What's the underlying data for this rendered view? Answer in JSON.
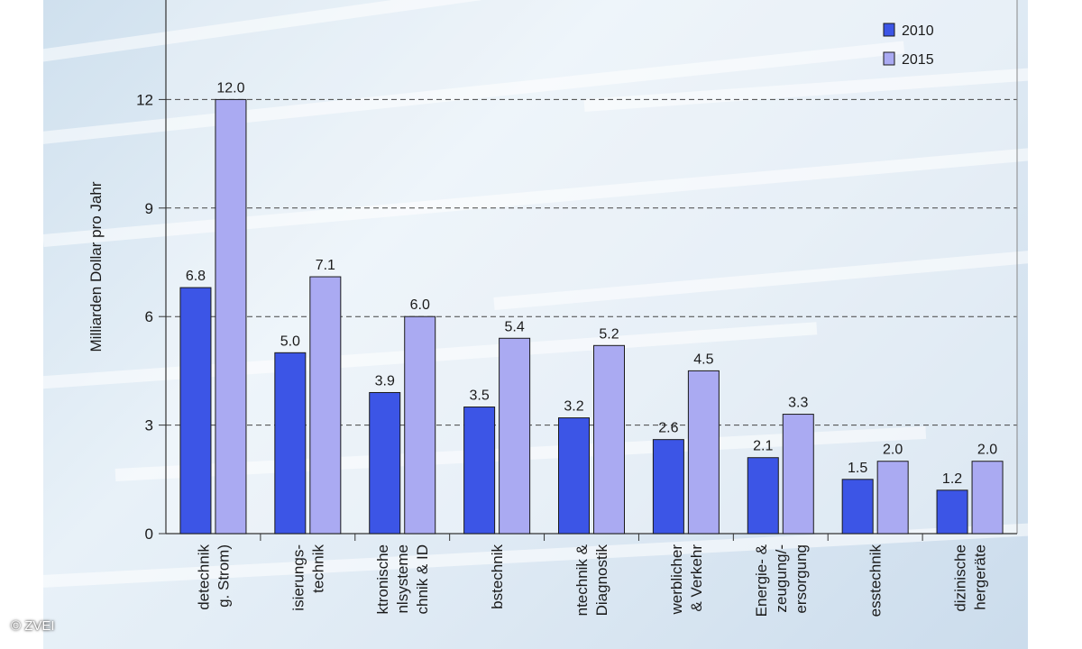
{
  "copyright": "© ZVEI",
  "colors": {
    "s2010": "#3c55e6",
    "s2015": "#aaaaf2",
    "gridline": "#444444"
  },
  "chart_data": {
    "type": "bar",
    "ylabel": "Milliarden Dollar pro Jahr",
    "ylim": [
      0,
      15
    ],
    "yticks": [
      0,
      3,
      6,
      9,
      12
    ],
    "grid": "dashed horizontal",
    "legend_position": "top-right",
    "categories": [
      [
        "detechnik",
        "g. Strom)"
      ],
      [
        "isierungs-",
        "technik"
      ],
      [
        "ktronische",
        "nlsysteme",
        "chnik & ID"
      ],
      [
        "bstechnik"
      ],
      [
        "ntechnik &",
        "Diagnostik"
      ],
      [
        "werblicher",
        "& Verkehr"
      ],
      [
        "Energie- &",
        "zeugung/-",
        "ersorgung"
      ],
      [
        "esstechnik"
      ],
      [
        "dizinische",
        "hergeräte"
      ]
    ],
    "series": [
      {
        "name": "2010",
        "values": [
          6.8,
          5.0,
          3.9,
          3.5,
          3.2,
          2.6,
          2.1,
          1.5,
          1.2
        ],
        "labels": [
          "6.8",
          "5.0",
          "3.9",
          "3.5",
          "3.2",
          "2.6",
          "2.1",
          "1.5",
          "1.2"
        ]
      },
      {
        "name": "2015",
        "values": [
          12.0,
          7.1,
          6.0,
          5.4,
          5.2,
          4.5,
          3.3,
          2.0,
          2.0
        ],
        "labels": [
          "12.0",
          "7.1",
          "6.0",
          "5.4",
          "5.2",
          "4.5",
          "3.3",
          "2.0",
          "2.0"
        ]
      }
    ]
  }
}
